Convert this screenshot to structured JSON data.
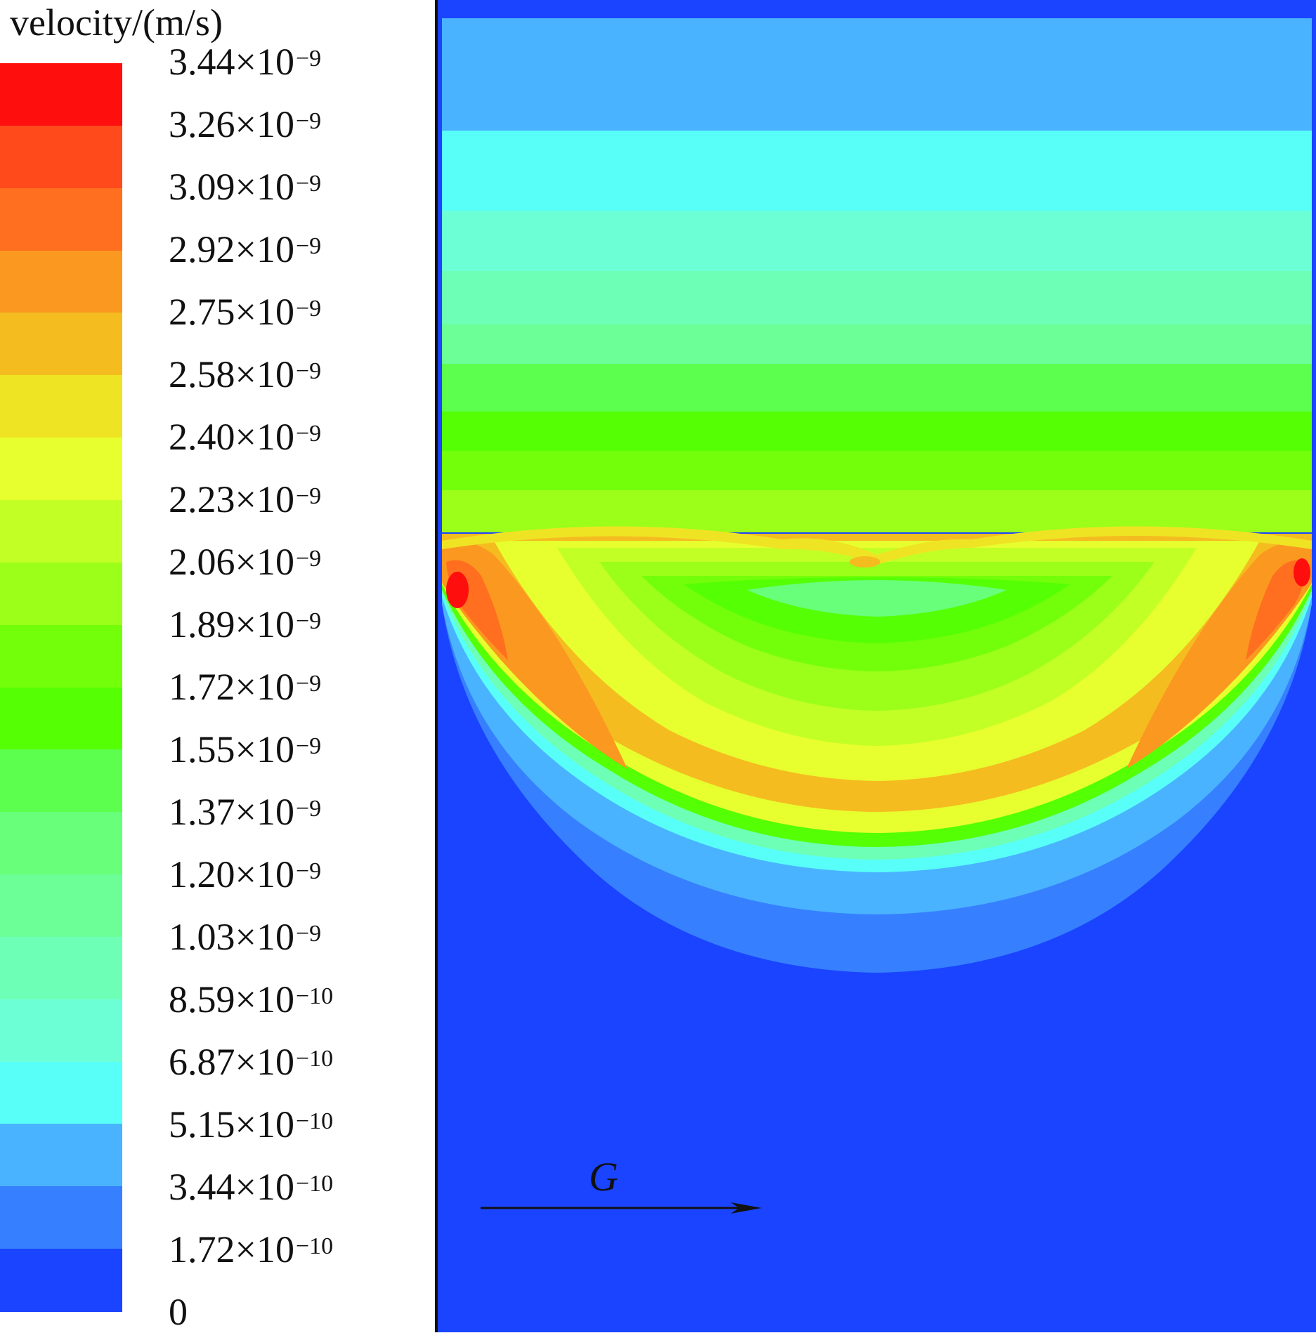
{
  "chart_data": {
    "type": "heatmap",
    "title": "",
    "colorbar": {
      "label": "velocity/(m/s)",
      "tick_labels": [
        {
          "mantissa": "3.44",
          "exponent": "-9"
        },
        {
          "mantissa": "3.26",
          "exponent": "-9"
        },
        {
          "mantissa": "3.09",
          "exponent": "-9"
        },
        {
          "mantissa": "2.92",
          "exponent": "-9"
        },
        {
          "mantissa": "2.75",
          "exponent": "-9"
        },
        {
          "mantissa": "2.58",
          "exponent": "-9"
        },
        {
          "mantissa": "2.40",
          "exponent": "-9"
        },
        {
          "mantissa": "2.23",
          "exponent": "-9"
        },
        {
          "mantissa": "2.06",
          "exponent": "-9"
        },
        {
          "mantissa": "1.89",
          "exponent": "-9"
        },
        {
          "mantissa": "1.72",
          "exponent": "-9"
        },
        {
          "mantissa": "1.55",
          "exponent": "-9"
        },
        {
          "mantissa": "1.37",
          "exponent": "-9"
        },
        {
          "mantissa": "1.20",
          "exponent": "-9"
        },
        {
          "mantissa": "1.03",
          "exponent": "-9"
        },
        {
          "mantissa": "8.59",
          "exponent": "-10"
        },
        {
          "mantissa": "6.87",
          "exponent": "-10"
        },
        {
          "mantissa": "5.15",
          "exponent": "-10"
        },
        {
          "mantissa": "3.44",
          "exponent": "-10"
        },
        {
          "mantissa": "1.72",
          "exponent": "-10"
        },
        {
          "mantissa": "0",
          "exponent": ""
        }
      ],
      "values": [
        3.44e-09,
        3.26e-09,
        3.09e-09,
        2.92e-09,
        2.75e-09,
        2.58e-09,
        2.4e-09,
        2.23e-09,
        2.06e-09,
        1.89e-09,
        1.72e-09,
        1.55e-09,
        1.37e-09,
        1.2e-09,
        1.03e-09,
        8.59e-10,
        6.87e-10,
        5.15e-10,
        3.44e-10,
        1.72e-10,
        0
      ],
      "band_colors": [
        "#ff0e0e",
        "#ff4a1c",
        "#ff6f1f",
        "#fb9820",
        "#f5bc20",
        "#efe424",
        "#e7ff2e",
        "#c2ff25",
        "#9bff1a",
        "#73ff0a",
        "#55ff04",
        "#5cff4e",
        "#68ff7a",
        "#6cff98",
        "#6effb6",
        "#6cffd6",
        "#58fff8",
        "#4ab3ff",
        "#3680ff",
        "#1a44ff"
      ]
    },
    "annotations": [
      {
        "text": "G",
        "kind": "gravity-direction-arrow",
        "direction": "right"
      }
    ]
  }
}
